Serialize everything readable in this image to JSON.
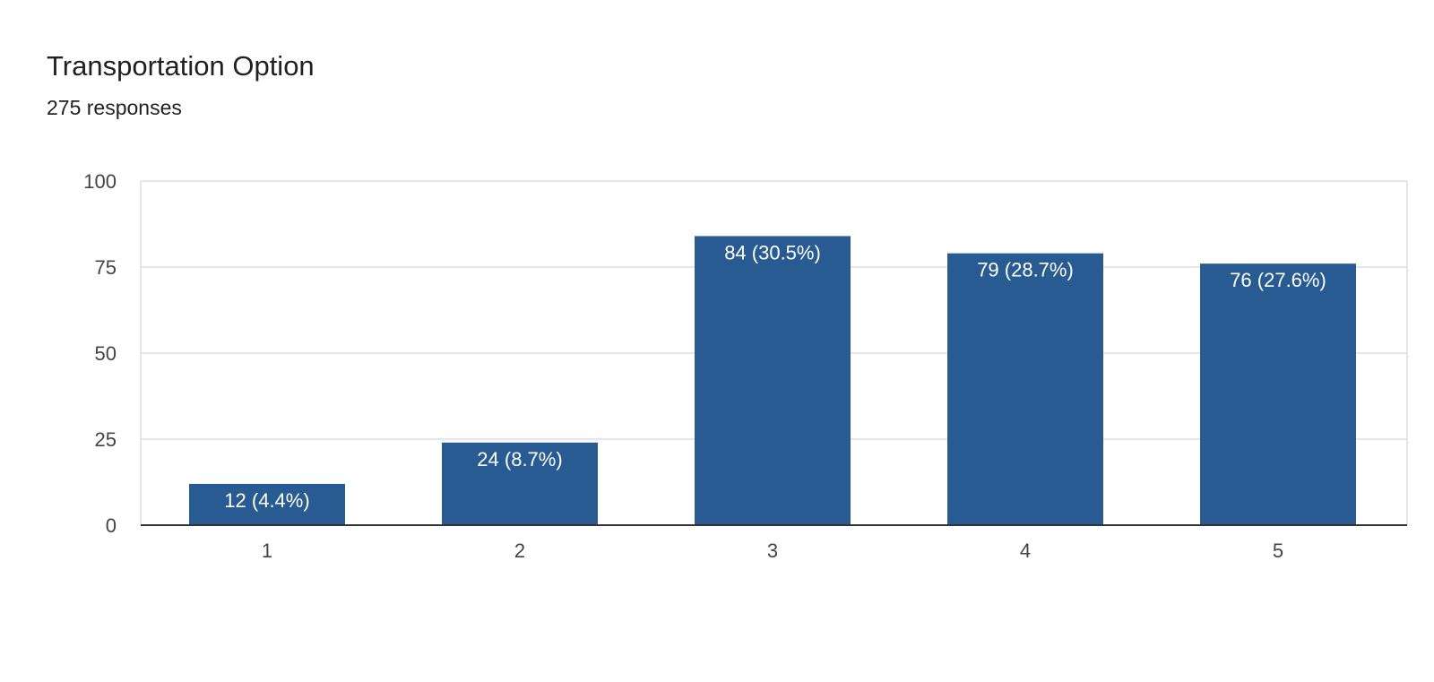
{
  "title": "Transportation Option",
  "subtitle": "275 responses",
  "colors": {
    "bar": "#295b93",
    "grid": "#e6e6e6",
    "axis": "#333333",
    "tick_text": "#444444",
    "label_text": "#ffffff"
  },
  "chart_data": {
    "type": "bar",
    "title": "Transportation Option",
    "subtitle": "275 responses",
    "categories": [
      "1",
      "2",
      "3",
      "4",
      "5"
    ],
    "values": [
      12,
      24,
      84,
      79,
      76
    ],
    "data_labels": [
      "12 (4.4%)",
      "24 (8.7%)",
      "84 (30.5%)",
      "79 (28.7%)",
      "76 (27.6%)"
    ],
    "ylim": [
      0,
      100
    ],
    "yticks": [
      0,
      25,
      50,
      75,
      100
    ],
    "xlabel": "",
    "ylabel": "",
    "grid": true,
    "legend": "none"
  }
}
